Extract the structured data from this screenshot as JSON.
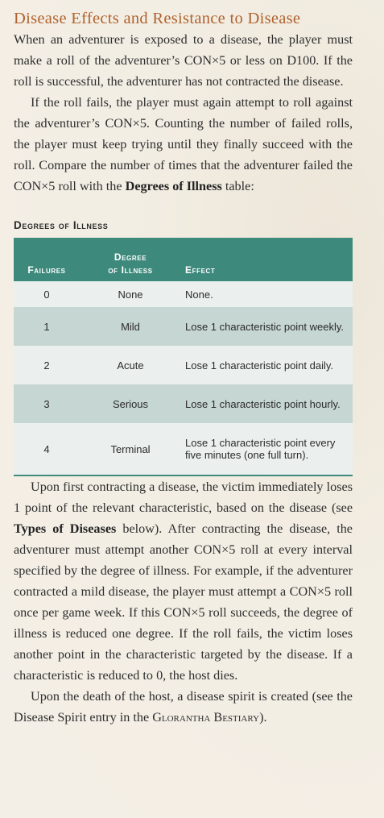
{
  "section": {
    "title": "Disease Effects and Resistance to Disease"
  },
  "intro": {
    "p1": "When an adventurer is exposed to a disease, the player must make a roll of the adventurer’s CON×5 or less on D100. If the roll is successful, the adventurer has not contracted the disease.",
    "p2_start": "If the roll fails, the player must again attempt to roll against the adventurer’s CON×5. Counting the number of failed rolls, the player must keep trying until they finally succeed with the roll. Compare the number of times that the adventurer failed the CON×5 roll with the ",
    "p2_bold": "Degrees of Illness",
    "p2_end": " table:"
  },
  "table": {
    "title": "Degrees of Illness",
    "headers": {
      "failures": "Failures",
      "degree_line1": "Degree",
      "degree_line2": "of Illness",
      "effect": "Effect"
    },
    "rows": [
      {
        "failures": "0",
        "degree": "None",
        "effect": "None."
      },
      {
        "failures": "1",
        "degree": "Mild",
        "effect": "Lose 1 characteristic point weekly."
      },
      {
        "failures": "2",
        "degree": "Acute",
        "effect": "Lose 1 characteristic point daily."
      },
      {
        "failures": "3",
        "degree": "Serious",
        "effect": "Lose 1 characteristic point hourly."
      },
      {
        "failures": "4",
        "degree": "Terminal",
        "effect": "Lose 1 characteristic point every five minutes (one full turn)."
      }
    ]
  },
  "after": {
    "p3_start": "Upon first contracting a disease, the victim immediately loses 1 point of the relevant characteristic, based on the disease (see ",
    "p3_bold": "Types of Diseases",
    "p3_end": " below). After contracting the disease, the adventurer must attempt another CON×5 roll at every interval specified by the degree of illness. For example, if the adventurer contracted a mild disease, the player must attempt a CON×5 roll once per game week. If this CON×5 roll succeeds, the degree of illness is reduced one degree. If the roll fails, the victim loses another point in the characteristic targeted by the disease. If a characteristic is reduced to 0, the host dies.",
    "p4_start": "Upon the death of the host, a disease spirit is created (see the Disease Spirit entry in the ",
    "p4_smallcaps": "Glorantha Bestiary",
    "p4_end": ")."
  }
}
